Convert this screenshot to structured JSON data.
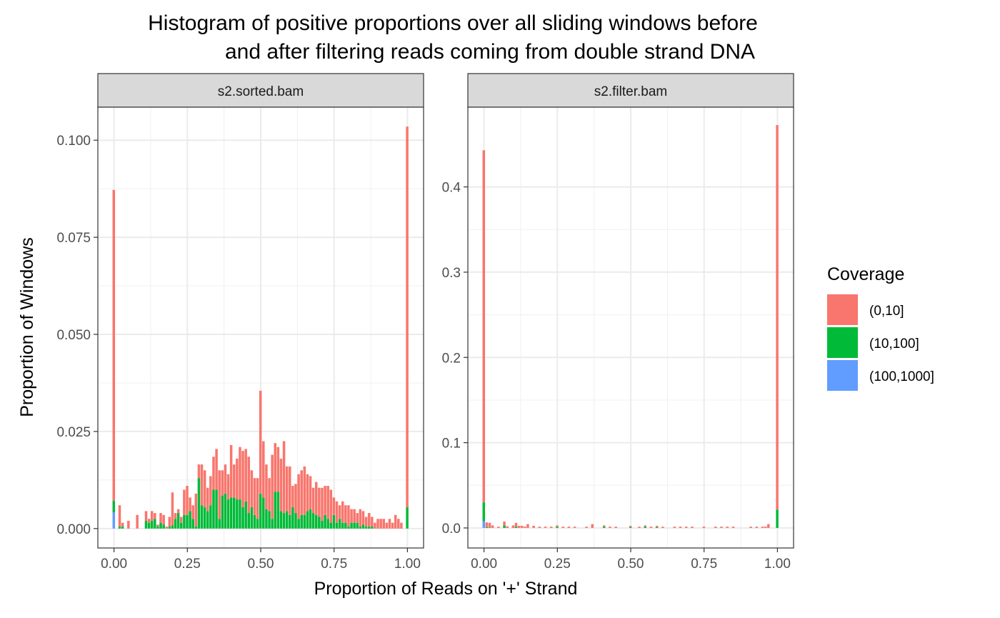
{
  "chart_data": {
    "type": "bar",
    "stacked": true,
    "title_lines": [
      "Histogram of positive proportions over all sliding windows before",
      "and after filtering reads coming from double strand DNA"
    ],
    "xlabel": "Proportion of Reads on '+' Strand",
    "ylabel": "Proportion of Windows",
    "grid": true,
    "legend": {
      "title": "Coverage",
      "placement": "right",
      "entries": [
        {
          "label": "(0,10]",
          "color": "#F8766D"
        },
        {
          "label": "(10,100]",
          "color": "#00BA38"
        },
        {
          "label": "(100,1000]",
          "color": "#619CFF"
        }
      ]
    },
    "x_ticks": [
      0,
      0.25,
      0.5,
      0.75,
      1
    ],
    "x_tick_labels": [
      "0.00",
      "0.25",
      "0.50",
      "0.75",
      "1.00"
    ],
    "xlim": [
      -0.055,
      1.055
    ],
    "bin_width": 0.01,
    "panels": [
      {
        "strip": "s2.sorted.bam",
        "ylim": [
          -0.005,
          0.1085
        ],
        "y_ticks": [
          0,
          0.025,
          0.05,
          0.075,
          0.1
        ],
        "y_tick_labels": [
          "0.000",
          "0.025",
          "0.050",
          "0.075",
          "0.100"
        ],
        "x": [
          0,
          0.02,
          0.03,
          0.05,
          0.08,
          0.11,
          0.12,
          0.13,
          0.14,
          0.15,
          0.16,
          0.17,
          0.18,
          0.19,
          0.2,
          0.21,
          0.22,
          0.23,
          0.24,
          0.25,
          0.26,
          0.27,
          0.28,
          0.29,
          0.3,
          0.31,
          0.32,
          0.33,
          0.34,
          0.35,
          0.36,
          0.37,
          0.38,
          0.39,
          0.4,
          0.41,
          0.42,
          0.43,
          0.44,
          0.45,
          0.46,
          0.47,
          0.48,
          0.49,
          0.5,
          0.51,
          0.52,
          0.53,
          0.54,
          0.55,
          0.56,
          0.57,
          0.58,
          0.59,
          0.6,
          0.61,
          0.62,
          0.63,
          0.64,
          0.65,
          0.66,
          0.67,
          0.68,
          0.69,
          0.7,
          0.71,
          0.72,
          0.73,
          0.74,
          0.75,
          0.76,
          0.77,
          0.78,
          0.79,
          0.8,
          0.81,
          0.82,
          0.83,
          0.84,
          0.85,
          0.86,
          0.87,
          0.88,
          0.89,
          0.9,
          0.91,
          0.92,
          0.93,
          0.94,
          0.95,
          0.96,
          0.97,
          0.98,
          1
        ],
        "series": [
          {
            "name": "(100,1000]",
            "values": [
              0.0042,
              0,
              0,
              0,
              0,
              0,
              0,
              0,
              0,
              0,
              0,
              0,
              0,
              0,
              0,
              0,
              0,
              0,
              0,
              0,
              0,
              0,
              0,
              0,
              0,
              0,
              0,
              0,
              0,
              0,
              0,
              0,
              0,
              0,
              0,
              0,
              0,
              0,
              0,
              0,
              0,
              0,
              0,
              0,
              0,
              0,
              0,
              0,
              0,
              0,
              0,
              0,
              0,
              0,
              0,
              0,
              0,
              0,
              0,
              0,
              0,
              0,
              0,
              0,
              0,
              0,
              0,
              0,
              0,
              0,
              0,
              0,
              0,
              0,
              0,
              0,
              0,
              0,
              0,
              0,
              0,
              0,
              0,
              0,
              0,
              0,
              0,
              0,
              0,
              0,
              0,
              0,
              0,
              0
            ]
          },
          {
            "name": "(10,100]",
            "values": [
              0.003,
              0.0005,
              0.0005,
              0,
              0,
              0.002,
              0.0015,
              0.002,
              0.0025,
              0.0005,
              0.0015,
              0.001,
              0,
              0.0005,
              0.0008,
              0.0025,
              0.004,
              0.0015,
              0.0035,
              0.0035,
              0.0045,
              0.0025,
              0.0005,
              0.013,
              0.006,
              0.0055,
              0.0045,
              0.006,
              0.01,
              0.01,
              0.0025,
              0.0085,
              0.009,
              0.0075,
              0.008,
              0.008,
              0.0075,
              0.0075,
              0.0055,
              0.007,
              0.004,
              0.0055,
              0.0035,
              0.0025,
              0.009,
              0.008,
              0.005,
              0.0045,
              0.0025,
              0.0095,
              0.0095,
              0.0045,
              0.004,
              0.0045,
              0.0035,
              0.0055,
              0.004,
              0.0025,
              0.0035,
              0.0035,
              0.0045,
              0.005,
              0.004,
              0.0035,
              0.003,
              0.002,
              0.0035,
              0.0025,
              0.0015,
              0.0035,
              0.0015,
              0.0025,
              0.0015,
              0.0015,
              0.0005,
              0.0015,
              0.0015,
              0.0015,
              0.0005,
              0.001,
              0.0005,
              0.0005,
              0.0005,
              0,
              0,
              0,
              0,
              0,
              0,
              0,
              0,
              0,
              0,
              0.0055
            ]
          },
          {
            "name": "(0,10]",
            "values": [
              0.08,
              0.0055,
              0.001,
              0.002,
              0.0035,
              0.0025,
              0.001,
              0.0025,
              0.0015,
              0.0005,
              0.0025,
              0.0025,
              0.0005,
              0.0025,
              0.0085,
              0.0015,
              0.001,
              0.0015,
              0.0065,
              0.0075,
              0.0035,
              0.0035,
              0.0085,
              0.0035,
              0.0105,
              0.0095,
              0.006,
              0.0075,
              0.0085,
              0.0105,
              0.0125,
              0.0065,
              0.0075,
              0.0065,
              0.0135,
              0.0085,
              0.0105,
              0.0135,
              0.0145,
              0.0135,
              0.0145,
              0.0095,
              0.0095,
              0.0105,
              0.0265,
              0.0145,
              0.0115,
              0.0085,
              0.0165,
              0.0125,
              0.0115,
              0.0135,
              0.0185,
              0.0115,
              0.0125,
              0.0055,
              0.0075,
              0.0115,
              0.0115,
              0.0125,
              0.0095,
              0.0085,
              0.0065,
              0.0085,
              0.0075,
              0.0085,
              0.0075,
              0.0085,
              0.0085,
              0.0045,
              0.0055,
              0.0035,
              0.0055,
              0.0045,
              0.0055,
              0.0035,
              0.0035,
              0.0025,
              0.0045,
              0.0035,
              0.0025,
              0.0035,
              0.0025,
              0.0015,
              0.0025,
              0.0025,
              0.0025,
              0.0015,
              0.0025,
              0.0015,
              0.0035,
              0.0025,
              0.0015,
              0.098
            ]
          }
        ]
      },
      {
        "strip": "s2.filter.bam",
        "ylim": [
          -0.0235,
          0.4935
        ],
        "y_ticks": [
          0,
          0.1,
          0.2,
          0.3,
          0.4
        ],
        "y_tick_labels": [
          "0.0",
          "0.1",
          "0.2",
          "0.3",
          "0.4"
        ],
        "x": [
          0,
          0.01,
          0.02,
          0.03,
          0.05,
          0.07,
          0.08,
          0.1,
          0.11,
          0.12,
          0.13,
          0.14,
          0.15,
          0.17,
          0.19,
          0.21,
          0.23,
          0.25,
          0.27,
          0.29,
          0.31,
          0.35,
          0.37,
          0.41,
          0.43,
          0.45,
          0.5,
          0.53,
          0.55,
          0.57,
          0.59,
          0.61,
          0.65,
          0.67,
          0.69,
          0.71,
          0.75,
          0.79,
          0.81,
          0.83,
          0.85,
          0.91,
          0.93,
          0.95,
          0.96,
          0.97,
          1
        ],
        "series": [
          {
            "name": "(100,1000]",
            "values": [
              0.008,
              0,
              0,
              0,
              0,
              0,
              0,
              0,
              0,
              0,
              0,
              0,
              0,
              0,
              0,
              0,
              0,
              0,
              0,
              0,
              0,
              0,
              0,
              0,
              0,
              0,
              0,
              0,
              0,
              0,
              0,
              0,
              0,
              0,
              0,
              0,
              0,
              0,
              0,
              0,
              0,
              0,
              0,
              0,
              0,
              0,
              0
            ]
          },
          {
            "name": "(10,100]",
            "values": [
              0.022,
              0.001,
              0.0005,
              0,
              0,
              0.003,
              0,
              0,
              0.0015,
              0,
              0,
              0,
              0,
              0,
              0,
              0,
              0,
              0.0015,
              0,
              0,
              0,
              0,
              0,
              0.0015,
              0,
              0,
              0.001,
              0,
              0.0015,
              0,
              0.001,
              0,
              0,
              0,
              0,
              0,
              0,
              0,
              0,
              0,
              0,
              0,
              0,
              0,
              0,
              0,
              0.0215
            ]
          },
          {
            "name": "(0,10]",
            "values": [
              0.413,
              0.0055,
              0.0055,
              0.003,
              0.0015,
              0.0045,
              0.002,
              0.003,
              0.0045,
              0.0025,
              0.0025,
              0.0015,
              0.0045,
              0.0025,
              0.0015,
              0.0015,
              0.0015,
              0.0015,
              0.0015,
              0.0015,
              0.0015,
              0.0015,
              0.0045,
              0.0015,
              0.0015,
              0.0015,
              0.0015,
              0.0015,
              0.0015,
              0.0015,
              0.0015,
              0.0015,
              0.0015,
              0.0015,
              0.0015,
              0.0015,
              0.0015,
              0.0015,
              0.0015,
              0.0015,
              0.0015,
              0.0015,
              0.0015,
              0.0015,
              0.0015,
              0.0045,
              0.451
            ]
          }
        ]
      }
    ]
  }
}
